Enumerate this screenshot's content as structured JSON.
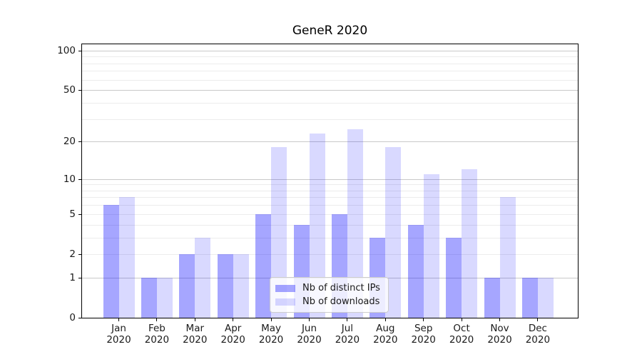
{
  "chart_data": {
    "type": "bar",
    "title": "GeneR 2020",
    "categories": [
      {
        "month": "Jan",
        "year": "2020"
      },
      {
        "month": "Feb",
        "year": "2020"
      },
      {
        "month": "Mar",
        "year": "2020"
      },
      {
        "month": "Apr",
        "year": "2020"
      },
      {
        "month": "May",
        "year": "2020"
      },
      {
        "month": "Jun",
        "year": "2020"
      },
      {
        "month": "Jul",
        "year": "2020"
      },
      {
        "month": "Aug",
        "year": "2020"
      },
      {
        "month": "Sep",
        "year": "2020"
      },
      {
        "month": "Oct",
        "year": "2020"
      },
      {
        "month": "Nov",
        "year": "2020"
      },
      {
        "month": "Dec",
        "year": "2020"
      }
    ],
    "series": [
      {
        "name": "Nb of distinct IPs",
        "key": "distinct-ips",
        "color": "rgba(0,0,255,0.35)",
        "values": [
          6,
          1,
          2,
          2,
          5,
          4,
          5,
          3,
          4,
          3,
          1,
          1
        ]
      },
      {
        "name": "Nb of downloads",
        "key": "downloads",
        "color": "rgba(0,0,255,0.15)",
        "values": [
          7,
          1,
          3,
          2,
          18,
          23,
          25,
          18,
          11,
          12,
          7,
          1
        ]
      }
    ],
    "y_axis": {
      "scale": "log1p",
      "tick_labels": [
        "0",
        "1",
        "2",
        "5",
        "10",
        "20",
        "50",
        "100"
      ],
      "tick_values": [
        0,
        1,
        2,
        5,
        10,
        20,
        50,
        100
      ],
      "major_gridlines": [
        1,
        10,
        20,
        50,
        100
      ],
      "minor_gridlines": [
        2,
        3,
        4,
        5,
        6,
        7,
        8,
        9,
        30,
        40,
        60,
        70,
        80,
        90
      ],
      "ylim": [
        0,
        113
      ]
    },
    "xlabel": "",
    "ylabel": "",
    "grid": true,
    "legend_position": "lower-center"
  },
  "colors": {
    "grid_major": "#c9c9c9",
    "grid_minor": "#ececec",
    "axis": "#000000",
    "text": "#1a1a1a",
    "background": "#ffffff",
    "legend_border": "#cccccc",
    "legend_bg": "rgba(255,255,255,0.8)"
  }
}
